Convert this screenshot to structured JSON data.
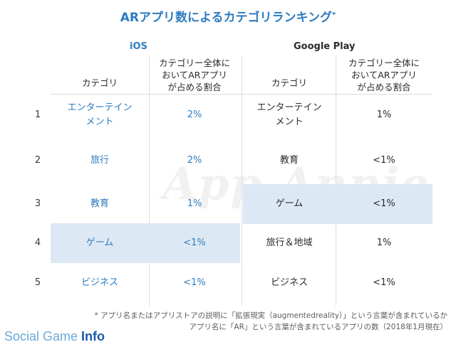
{
  "title": "ARアプリ数によるカテゴリランキング",
  "title_mark": "*",
  "watermark": "App Annie",
  "groups": {
    "ios": "iOS",
    "google_play": "Google Play"
  },
  "headers": {
    "category": "カテゴリ",
    "share_line1": "カテゴリー全体に",
    "share_line2": "おいてARアプリ",
    "share_line3": "が占める割合"
  },
  "colors": {
    "accent_blue": "#2e7bbf",
    "highlight": "#dce8f3",
    "text": "#2b2b2b"
  },
  "chart_data": {
    "type": "table",
    "title": "ARアプリ数によるカテゴリランキング",
    "columns": [
      "",
      "iOS カテゴリ",
      "iOS カテゴリー全体においてARアプリが占める割合",
      "Google Play カテゴリ",
      "Google Play カテゴリー全体においてARアプリが占める割合"
    ],
    "rows": [
      {
        "rank": "1",
        "ios_category": "エンターテイン\nメント",
        "ios_share": "2%",
        "gp_category": "エンターテイン\nメント",
        "gp_share": "1%"
      },
      {
        "rank": "2",
        "ios_category": "旅行",
        "ios_share": "2%",
        "gp_category": "教育",
        "gp_share": "<1%"
      },
      {
        "rank": "3",
        "ios_category": "教育",
        "ios_share": "1%",
        "gp_category": "ゲーム",
        "gp_share": "<1%"
      },
      {
        "rank": "4",
        "ios_category": "ゲーム",
        "ios_share": "<1%",
        "gp_category": "旅行＆地域",
        "gp_share": "1%"
      },
      {
        "rank": "5",
        "ios_category": "ビジネス",
        "ios_share": "<1%",
        "gp_category": "ビジネス",
        "gp_share": "<1%"
      }
    ],
    "highlighted": {
      "ios_rank": "4",
      "gp_rank": "3"
    }
  },
  "footnote": {
    "line1": "* アプリ名またはアプリストアの説明に「拡張現実（augmentedreality）」という言葉が含まれているか",
    "line2": "アプリ名に「AR」という言葉が含まれているアプリの数（2018年1月現在）"
  },
  "brand": {
    "part1": "Social Game ",
    "part2": "Info"
  }
}
